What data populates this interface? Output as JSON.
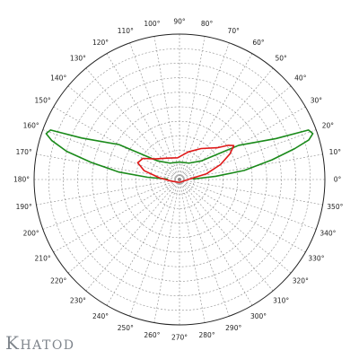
{
  "brand": {
    "name": "Khatod"
  },
  "colors": {
    "grid": "#8c8c8c",
    "outer_circle": "#222222",
    "green_series": "#1a8a1a",
    "red_series": "#e01818",
    "brand": "#7f858c"
  },
  "chart_data": {
    "type": "polar",
    "title": "",
    "angle_unit": "degrees",
    "angle_ticks": [
      0,
      10,
      20,
      30,
      40,
      50,
      60,
      70,
      80,
      90,
      100,
      110,
      120,
      130,
      140,
      150,
      160,
      170,
      180,
      190,
      200,
      210,
      220,
      230,
      240,
      250,
      260,
      270,
      280,
      290,
      300,
      310,
      320,
      330,
      340,
      350
    ],
    "angle_tick_labels": [
      "0°",
      "10°",
      "20°",
      "30°",
      "40°",
      "50°",
      "60°",
      "70°",
      "80°",
      "90°",
      "100°",
      "110°",
      "120°",
      "130°",
      "140°",
      "150°",
      "160°",
      "170°",
      "180°",
      "190°",
      "200°",
      "210°",
      "220°",
      "230°",
      "240°",
      "250°",
      "260°",
      "270°",
      "280°",
      "290°",
      "300°",
      "310°",
      "320°",
      "330°",
      "340°",
      "350°"
    ],
    "radial_grid_rings": 10,
    "radial_range": [
      0,
      1
    ],
    "grid": true,
    "grid_style": "dashed",
    "series": [
      {
        "color": "#1a8a1a",
        "points": [
          {
            "angle": 2,
            "r": 0.09
          },
          {
            "angle": 5,
            "r": 0.25
          },
          {
            "angle": 8,
            "r": 0.45
          },
          {
            "angle": 12,
            "r": 0.65
          },
          {
            "angle": 15,
            "r": 0.82
          },
          {
            "angle": 17,
            "r": 0.93
          },
          {
            "angle": 19,
            "r": 0.97
          },
          {
            "angle": 21,
            "r": 0.95
          },
          {
            "angle": 23,
            "r": 0.72
          },
          {
            "angle": 30,
            "r": 0.47
          },
          {
            "angle": 40,
            "r": 0.2
          },
          {
            "angle": 60,
            "r": 0.13
          },
          {
            "angle": 90,
            "r": 0.12
          },
          {
            "angle": 120,
            "r": 0.13
          },
          {
            "angle": 140,
            "r": 0.2
          },
          {
            "angle": 150,
            "r": 0.48
          },
          {
            "angle": 157,
            "r": 0.73
          },
          {
            "angle": 159,
            "r": 0.95
          },
          {
            "angle": 161,
            "r": 0.97
          },
          {
            "angle": 163,
            "r": 0.92
          },
          {
            "angle": 166,
            "r": 0.8
          },
          {
            "angle": 169,
            "r": 0.62
          },
          {
            "angle": 173,
            "r": 0.42
          },
          {
            "angle": 176,
            "r": 0.22
          },
          {
            "angle": 178,
            "r": 0.08
          }
        ]
      },
      {
        "color": "#e01818",
        "points": [
          {
            "angle": 270,
            "r": 0.02
          },
          {
            "angle": 5,
            "r": 0.08
          },
          {
            "angle": 12,
            "r": 0.19
          },
          {
            "angle": 20,
            "r": 0.3
          },
          {
            "angle": 27,
            "r": 0.39
          },
          {
            "angle": 32,
            "r": 0.44
          },
          {
            "angle": 35,
            "r": 0.41
          },
          {
            "angle": 40,
            "r": 0.34
          },
          {
            "angle": 55,
            "r": 0.26
          },
          {
            "angle": 72,
            "r": 0.2
          },
          {
            "angle": 95,
            "r": 0.15
          },
          {
            "angle": 120,
            "r": 0.17
          },
          {
            "angle": 140,
            "r": 0.22
          },
          {
            "angle": 150,
            "r": 0.29
          },
          {
            "angle": 158,
            "r": 0.31
          },
          {
            "angle": 166,
            "r": 0.25
          },
          {
            "angle": 175,
            "r": 0.14
          },
          {
            "angle": 190,
            "r": 0.06
          },
          {
            "angle": 270,
            "r": 0.02
          }
        ]
      }
    ]
  }
}
